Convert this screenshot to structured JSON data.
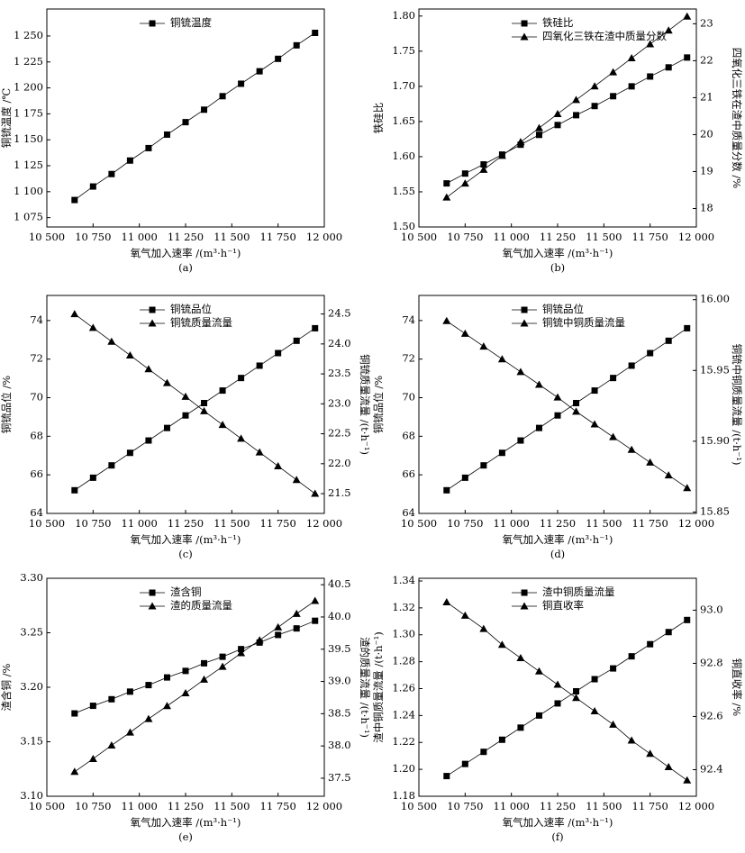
{
  "chart_data": [
    {
      "type": "line",
      "caption": "(a)",
      "x_label": "氧气加入速率 /(m³·h⁻¹)",
      "y_label": "铜锍温度 /℃",
      "x": [
        10650,
        10750,
        10850,
        10950,
        11050,
        11150,
        11250,
        11350,
        11450,
        11550,
        11650,
        11750,
        11850,
        11950
      ],
      "xlim": [
        10500,
        12000
      ],
      "xticks": [
        {
          "value": 10500,
          "label": "10 500"
        },
        {
          "value": 10750,
          "label": "10 750"
        },
        {
          "value": 11000,
          "label": "11 000"
        },
        {
          "value": 11250,
          "label": "11 250"
        },
        {
          "value": 11500,
          "label": "11 500"
        },
        {
          "value": 11750,
          "label": "11 750"
        },
        {
          "value": 12000,
          "label": "12 000"
        }
      ],
      "ylim": [
        1066,
        1276
      ],
      "yticks": [
        {
          "value": 1075,
          "label": "1 075"
        },
        {
          "value": 1100,
          "label": "1 100"
        },
        {
          "value": 1125,
          "label": "1 125"
        },
        {
          "value": 1150,
          "label": "1 150"
        },
        {
          "value": 1175,
          "label": "1 175"
        },
        {
          "value": 1200,
          "label": "1 200"
        },
        {
          "value": 1225,
          "label": "1 225"
        },
        {
          "value": 1250,
          "label": "1 250"
        }
      ],
      "series": [
        {
          "name": "铜锍温度",
          "color": "#000000",
          "marker": "square",
          "values": [
            1092,
            1105,
            1117,
            1130,
            1142,
            1155,
            1167,
            1179,
            1192,
            1204,
            1216,
            1228,
            1241,
            1253
          ]
        }
      ]
    },
    {
      "type": "line",
      "caption": "(b)",
      "x_label": "氧气加入速率 /(m³·h⁻¹)",
      "y_label": "铁硅比",
      "y2_label": "四氧化三铁在渣中质量分数 /%",
      "x": [
        10650,
        10750,
        10850,
        10950,
        11050,
        11150,
        11250,
        11350,
        11450,
        11550,
        11650,
        11750,
        11850,
        11950
      ],
      "xlim": [
        10500,
        12000
      ],
      "xticks": [
        {
          "value": 10500,
          "label": "10 500"
        },
        {
          "value": 10750,
          "label": "10 750"
        },
        {
          "value": 11000,
          "label": "11 000"
        },
        {
          "value": 11250,
          "label": "11 250"
        },
        {
          "value": 11500,
          "label": "11 500"
        },
        {
          "value": 11750,
          "label": "11 750"
        },
        {
          "value": 12000,
          "label": "12 000"
        }
      ],
      "ylim": [
        1.5,
        1.81
      ],
      "yticks": [
        {
          "value": 1.5,
          "label": "1.50"
        },
        1.55,
        {
          "value": 1.6,
          "label": "1.60"
        },
        1.65,
        {
          "value": 1.7,
          "label": "1.70"
        },
        1.75,
        {
          "value": 1.8,
          "label": "1.80"
        }
      ],
      "y2lim": [
        17.5,
        23.4
      ],
      "y2ticks": [
        18,
        19,
        20,
        21,
        22,
        23
      ],
      "series": [
        {
          "name": "铁硅比",
          "color": "#000000",
          "marker": "square",
          "values": [
            1.562,
            1.576,
            1.589,
            1.603,
            1.617,
            1.631,
            1.645,
            1.659,
            1.672,
            1.686,
            1.7,
            1.714,
            1.727,
            1.741
          ]
        },
        {
          "name": "四氧化三铁在渣中质量分数",
          "color": "#000000",
          "marker": "triangle",
          "axis": "y2",
          "values": [
            18.3,
            18.68,
            19.05,
            19.43,
            19.8,
            20.18,
            20.56,
            20.94,
            21.31,
            21.69,
            22.07,
            22.45,
            22.82,
            23.2
          ]
        }
      ]
    },
    {
      "type": "line",
      "caption": "(c)",
      "x_label": "氧气加入速率 /(m³·h⁻¹)",
      "y_label": "铜锍品位 /%",
      "y2_label": "铜锍质量流量 /(t·h⁻¹)",
      "x": [
        10650,
        10750,
        10850,
        10950,
        11050,
        11150,
        11250,
        11350,
        11450,
        11550,
        11650,
        11750,
        11850,
        11950
      ],
      "xlim": [
        10500,
        12000
      ],
      "xticks": [
        {
          "value": 10500,
          "label": "10 500"
        },
        {
          "value": 10750,
          "label": "10 750"
        },
        {
          "value": 11000,
          "label": "11 000"
        },
        {
          "value": 11250,
          "label": "11 250"
        },
        {
          "value": 11500,
          "label": "11 500"
        },
        {
          "value": 11750,
          "label": "11 750"
        },
        {
          "value": 12000,
          "label": "12 000"
        }
      ],
      "ylim": [
        64,
        75.3
      ],
      "yticks": [
        64,
        66,
        68,
        70,
        72,
        74
      ],
      "y2lim": [
        21.17,
        24.81
      ],
      "y2ticks": [
        21.5,
        {
          "value": 22,
          "label": "22.0"
        },
        22.5,
        {
          "value": 23,
          "label": "23.0"
        },
        23.5,
        {
          "value": 24,
          "label": "24.0"
        },
        24.5
      ],
      "series": [
        {
          "name": "铜锍品位",
          "color": "#000000",
          "marker": "square",
          "values": [
            65.2,
            65.85,
            66.49,
            67.14,
            67.78,
            68.43,
            69.08,
            69.72,
            70.37,
            71.02,
            71.66,
            72.31,
            72.95,
            73.6
          ]
        },
        {
          "name": "铜锍质量流量",
          "color": "#000000",
          "marker": "triangle",
          "axis": "y2",
          "values": [
            24.5,
            24.27,
            24.04,
            23.81,
            23.58,
            23.35,
            23.12,
            22.88,
            22.65,
            22.42,
            22.19,
            21.96,
            21.73,
            21.5
          ]
        }
      ]
    },
    {
      "type": "line",
      "caption": "(d)",
      "x_label": "氧气加入速率 /(m³·h⁻¹)",
      "y_label": "铜锍品位 /%",
      "y2_label": "铜锍中铜质量流量 /(t·h⁻¹)",
      "x": [
        10650,
        10750,
        10850,
        10950,
        11050,
        11150,
        11250,
        11350,
        11450,
        11550,
        11650,
        11750,
        11850,
        11950
      ],
      "xlim": [
        10500,
        12000
      ],
      "xticks": [
        {
          "value": 10500,
          "label": "10 500"
        },
        {
          "value": 10750,
          "label": "10 750"
        },
        {
          "value": 11000,
          "label": "11 000"
        },
        {
          "value": 11250,
          "label": "11 250"
        },
        {
          "value": 11500,
          "label": "11 500"
        },
        {
          "value": 11750,
          "label": "11 750"
        },
        {
          "value": 12000,
          "label": "12 000"
        }
      ],
      "ylim": [
        64,
        75.3
      ],
      "yticks": [
        64,
        66,
        68,
        70,
        72,
        74
      ],
      "y2lim": [
        15.849,
        16.003
      ],
      "y2ticks": [
        15.85,
        {
          "value": 15.9,
          "label": "15.90"
        },
        15.95,
        {
          "value": 16,
          "label": "16.00"
        }
      ],
      "series": [
        {
          "name": "铜锍品位",
          "color": "#000000",
          "marker": "square",
          "values": [
            65.2,
            65.85,
            66.49,
            67.14,
            67.78,
            68.43,
            69.08,
            69.72,
            70.37,
            71.02,
            71.66,
            72.31,
            72.95,
            73.6
          ]
        },
        {
          "name": "铜锍中铜质量流量",
          "color": "#000000",
          "marker": "triangle",
          "axis": "y2",
          "values": [
            15.985,
            15.976,
            15.967,
            15.958,
            15.949,
            15.94,
            15.931,
            15.921,
            15.912,
            15.903,
            15.894,
            15.885,
            15.876,
            15.867
          ]
        }
      ]
    },
    {
      "type": "line",
      "caption": "(e)",
      "x_label": "氧气加入速率 /(m³·h⁻¹)",
      "y_label": "渣含铜 /%",
      "y2_label": "渣的质量流量 /(t·h⁻¹)",
      "x": [
        10650,
        10750,
        10850,
        10950,
        11050,
        11150,
        11250,
        11350,
        11450,
        11550,
        11650,
        11750,
        11850,
        11950
      ],
      "xlim": [
        10500,
        12000
      ],
      "xticks": [
        {
          "value": 10500,
          "label": "10 500"
        },
        {
          "value": 10750,
          "label": "10 750"
        },
        {
          "value": 11000,
          "label": "11 000"
        },
        {
          "value": 11250,
          "label": "11 250"
        },
        {
          "value": 11500,
          "label": "11 500"
        },
        {
          "value": 11750,
          "label": "11 750"
        },
        {
          "value": 12000,
          "label": "12 000"
        }
      ],
      "ylim": [
        3.1,
        3.3
      ],
      "yticks": [
        {
          "value": 3.1,
          "label": "3.10"
        },
        3.15,
        {
          "value": 3.2,
          "label": "3.20"
        },
        3.25,
        {
          "value": 3.3,
          "label": "3.30"
        }
      ],
      "y2lim": [
        37.22,
        40.6
      ],
      "y2ticks": [
        37.5,
        {
          "value": 38,
          "label": "38.0"
        },
        38.5,
        {
          "value": 39,
          "label": "39.0"
        },
        39.5,
        {
          "value": 40,
          "label": "40.0"
        },
        40.5
      ],
      "series": [
        {
          "name": "渣含铜",
          "color": "#000000",
          "marker": "square",
          "values": [
            3.176,
            3.183,
            3.189,
            3.196,
            3.202,
            3.209,
            3.215,
            3.222,
            3.228,
            3.235,
            3.241,
            3.248,
            3.254,
            3.261
          ]
        },
        {
          "name": "渣的质量流量",
          "color": "#000000",
          "marker": "triangle",
          "axis": "y2",
          "values": [
            37.6,
            37.8,
            38.01,
            38.21,
            38.42,
            38.62,
            38.82,
            39.03,
            39.23,
            39.44,
            39.64,
            39.84,
            40.05,
            40.25
          ]
        }
      ]
    },
    {
      "type": "line",
      "caption": "(f)",
      "x_label": "氧气加入速率 /(m³·h⁻¹)",
      "y_label": "渣中铜质量流量 /(t·h⁻¹)",
      "y2_label": "铜直收率 /%",
      "x": [
        10650,
        10750,
        10850,
        10950,
        11050,
        11150,
        11250,
        11350,
        11450,
        11550,
        11650,
        11750,
        11850,
        11950
      ],
      "xlim": [
        10500,
        12000
      ],
      "xticks": [
        {
          "value": 10500,
          "label": "10 500"
        },
        {
          "value": 10750,
          "label": "10 750"
        },
        {
          "value": 11000,
          "label": "11 000"
        },
        {
          "value": 11250,
          "label": "11 250"
        },
        {
          "value": 11500,
          "label": "11 500"
        },
        {
          "value": 11750,
          "label": "11 750"
        },
        {
          "value": 12000,
          "label": "12 000"
        }
      ],
      "ylim": [
        1.18,
        1.342
      ],
      "yticks": [
        1.18,
        {
          "value": 1.2,
          "label": "1.20"
        },
        1.22,
        1.24,
        1.26,
        1.28,
        {
          "value": 1.3,
          "label": "1.30"
        },
        1.32,
        1.34
      ],
      "y2lim": [
        92.3,
        93.12
      ],
      "y2ticks": [
        92.4,
        92.6,
        92.8,
        {
          "value": 93,
          "label": "93.0"
        }
      ],
      "series": [
        {
          "name": "渣中铜质量流量",
          "color": "#000000",
          "marker": "square",
          "values": [
            1.195,
            1.204,
            1.213,
            1.222,
            1.231,
            1.24,
            1.249,
            1.258,
            1.267,
            1.275,
            1.284,
            1.293,
            1.302,
            1.311
          ]
        },
        {
          "name": "铜直收率",
          "color": "#000000",
          "marker": "triangle",
          "axis": "y2",
          "values": [
            93.03,
            92.98,
            92.93,
            92.87,
            92.82,
            92.77,
            92.72,
            92.67,
            92.62,
            92.57,
            92.51,
            92.46,
            92.41,
            92.36
          ]
        }
      ]
    }
  ]
}
